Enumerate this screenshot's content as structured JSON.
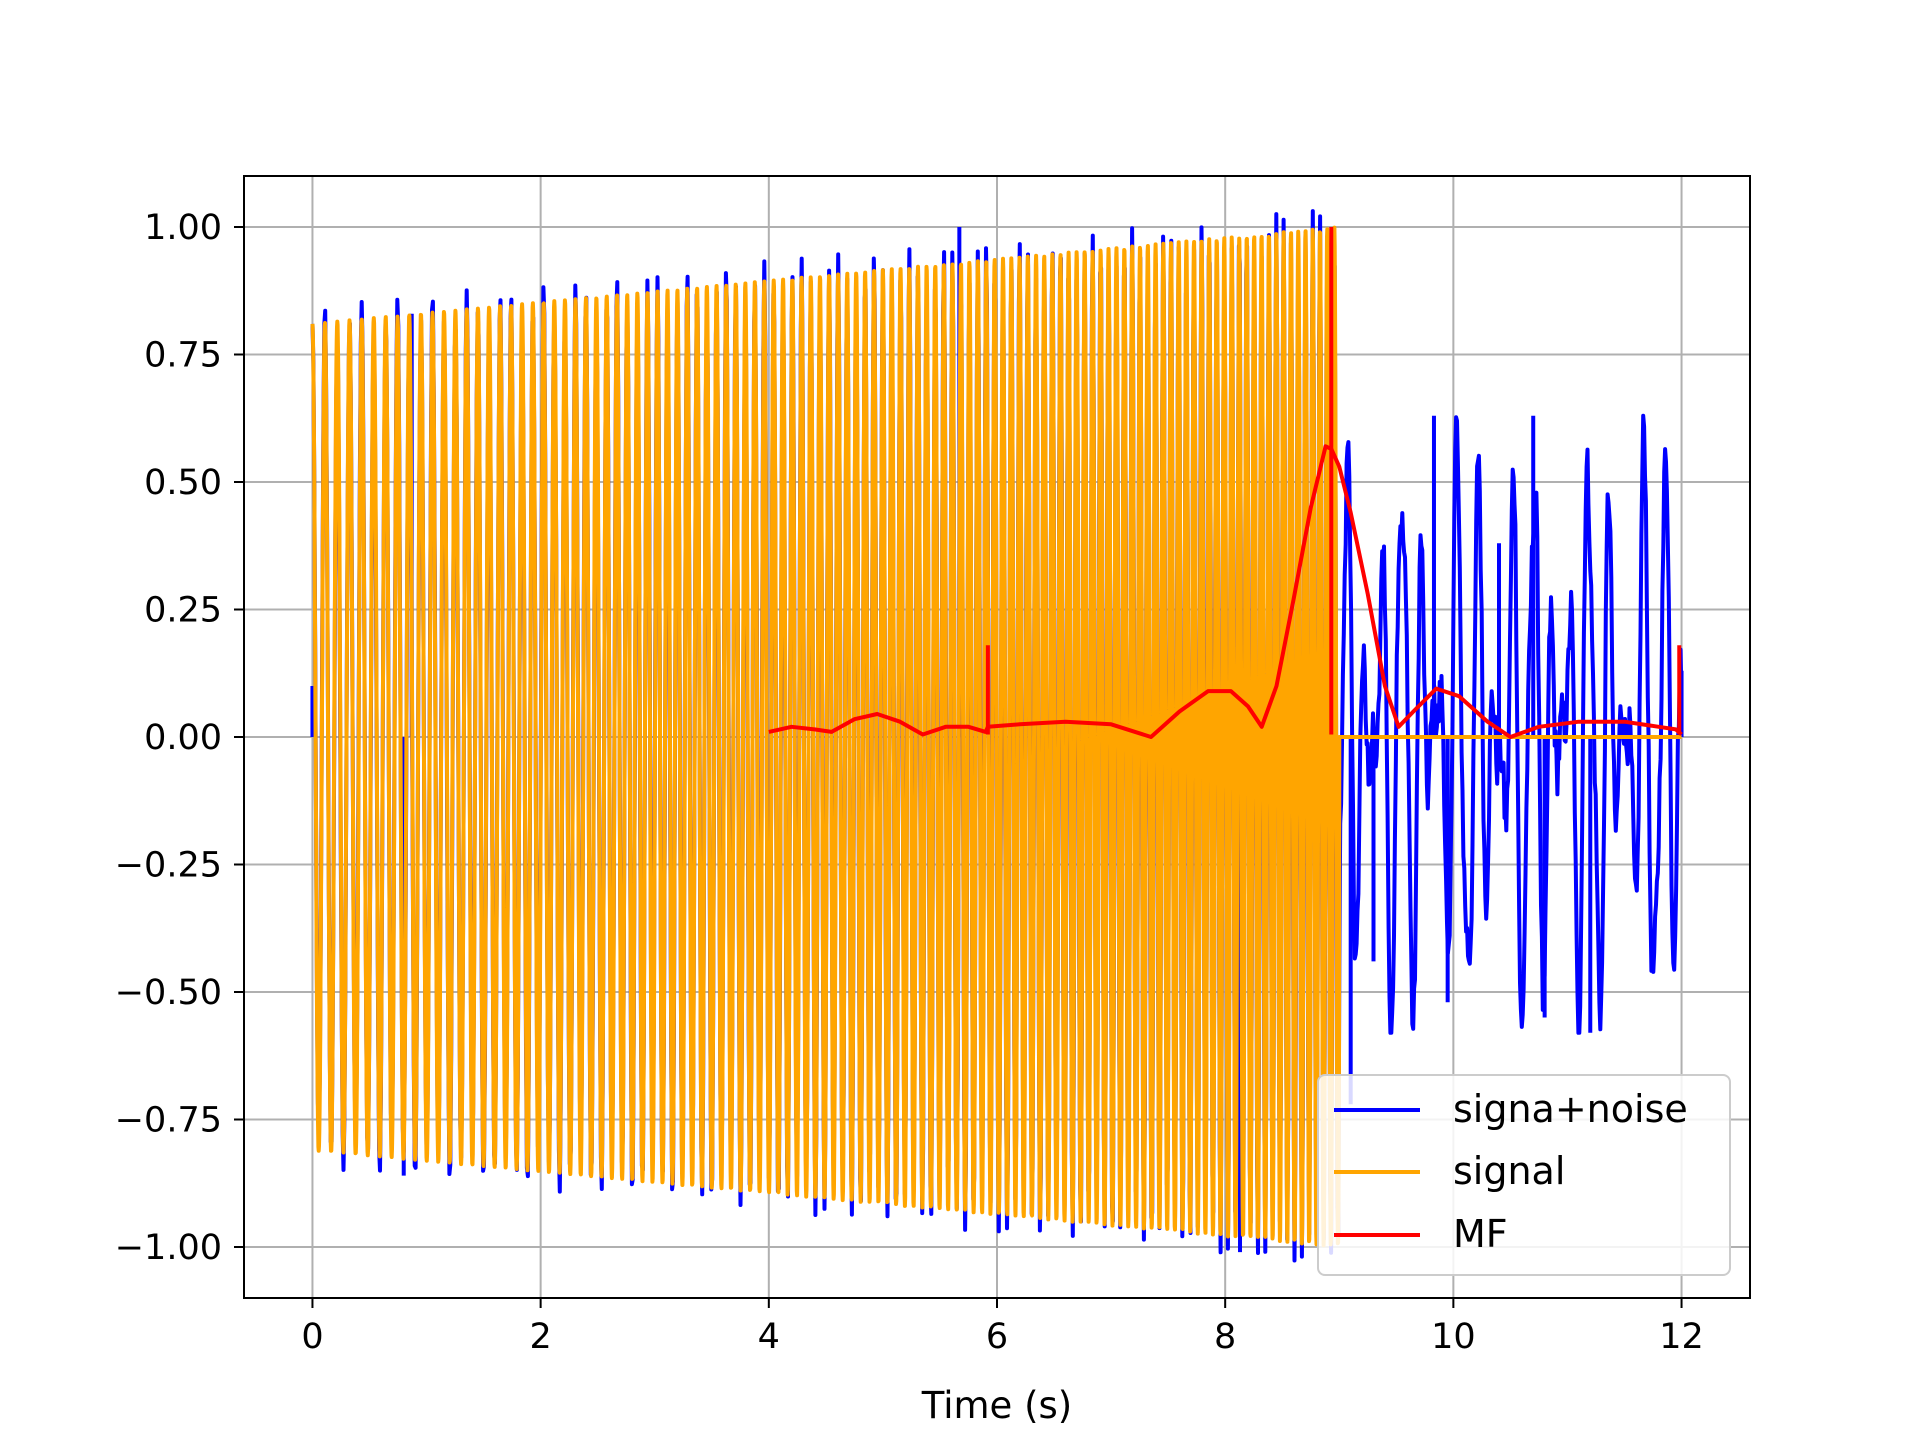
{
  "chart_data": {
    "type": "line",
    "title": "",
    "xlabel": "Time (s)",
    "ylabel": "",
    "xlim": [
      -0.6,
      12.6
    ],
    "ylim": [
      -1.1,
      1.1
    ],
    "xticks": [
      0,
      2,
      4,
      6,
      8,
      10,
      12
    ],
    "xtick_labels": [
      "0",
      "2",
      "4",
      "6",
      "8",
      "10",
      "12"
    ],
    "yticks": [
      -1.0,
      -0.75,
      -0.5,
      -0.25,
      0.0,
      0.25,
      0.5,
      0.75,
      1.0
    ],
    "ytick_labels": [
      "−1.00",
      "−0.75",
      "−0.50",
      "−0.25",
      "0.00",
      "0.25",
      "0.50",
      "0.75",
      "1.00"
    ],
    "grid": true,
    "legend_position": "lower right",
    "series": [
      {
        "name": "signa+noise",
        "color": "#0000ff",
        "description_points": [
          {
            "x": 0.0,
            "y": 0.1
          },
          {
            "x": 0.8,
            "y": -0.86
          },
          {
            "x": 0.87,
            "y": 0.83
          },
          {
            "x": 5.67,
            "y": 1.0
          },
          {
            "x": 8.13,
            "y": -1.01
          },
          {
            "x": 9.1,
            "y": -0.72
          },
          {
            "x": 9.3,
            "y": -0.44
          },
          {
            "x": 9.83,
            "y": 0.63
          },
          {
            "x": 9.95,
            "y": -0.52
          },
          {
            "x": 10.4,
            "y": 0.38
          },
          {
            "x": 10.7,
            "y": 0.63
          },
          {
            "x": 10.8,
            "y": -0.55
          },
          {
            "x": 11.2,
            "y": -0.58
          },
          {
            "x": 12.0,
            "y": 0.13
          }
        ]
      },
      {
        "name": "signal",
        "color": "#ffa500",
        "envelope_start": 0.81,
        "envelope_end": 1.0,
        "signal_end_time": 9.0,
        "flat_value_after_end": 0.0
      },
      {
        "name": "MF",
        "color": "#ff0000",
        "x": [
          4.0,
          4.2,
          4.4,
          4.55,
          4.75,
          4.95,
          5.15,
          5.35,
          5.55,
          5.75,
          5.9,
          5.92,
          6.2,
          6.6,
          7.0,
          7.35,
          7.6,
          7.85,
          8.05,
          8.2,
          8.32,
          8.45,
          8.6,
          8.75,
          8.88,
          8.93,
          8.96,
          9.0,
          9.1,
          9.25,
          9.4,
          9.52,
          9.65,
          9.85,
          10.05,
          10.3,
          10.5,
          10.75,
          11.1,
          11.5,
          11.8,
          11.95,
          12.0
        ],
        "y": [
          0.01,
          0.02,
          0.015,
          0.01,
          0.035,
          0.045,
          0.03,
          0.005,
          0.02,
          0.02,
          0.01,
          0.02,
          0.025,
          0.03,
          0.025,
          0.0,
          0.05,
          0.09,
          0.09,
          0.06,
          0.02,
          0.1,
          0.27,
          0.45,
          0.57,
          0.565,
          0.55,
          0.53,
          0.44,
          0.28,
          0.1,
          0.02,
          0.05,
          0.095,
          0.08,
          0.03,
          0.0,
          0.02,
          0.03,
          0.03,
          0.02,
          0.015,
          0.005
        ],
        "spikes": [
          {
            "x": 5.92,
            "y": 0.18
          },
          {
            "x": 8.93,
            "y": 1.0
          },
          {
            "x": 11.98,
            "y": 0.18
          }
        ]
      }
    ]
  },
  "legend": {
    "items": [
      {
        "label": "signa+noise",
        "color": "#0000ff"
      },
      {
        "label": "signal",
        "color": "#ffa500"
      },
      {
        "label": "MF",
        "color": "#ff0000"
      }
    ]
  }
}
